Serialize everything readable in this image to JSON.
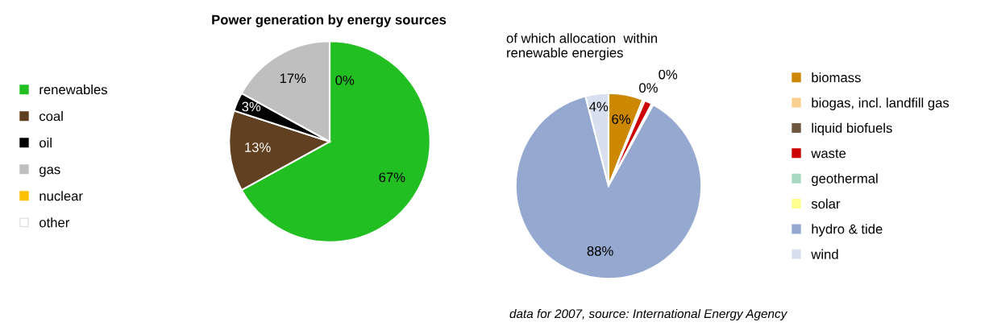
{
  "chart_data": [
    {
      "type": "pie",
      "title": "Power generation by energy sources",
      "categories": [
        "renewables",
        "coal",
        "oil",
        "gas",
        "nuclear",
        "other"
      ],
      "values": [
        67,
        13,
        3,
        17,
        0,
        0
      ],
      "colors": [
        "#22bf22",
        "#604020",
        "#000000",
        "#bfbfbf",
        "#ffc000",
        "#ffffff"
      ],
      "value_labels": [
        "67%",
        "13%",
        "3%",
        "17%",
        "0%",
        null
      ],
      "legend": "left"
    },
    {
      "type": "pie",
      "title": "of which allocation  within\nrenewable energies",
      "categories": [
        "biomass",
        "biogas, incl. landfill gas",
        "liquid biofuels",
        "waste",
        "geothermal",
        "solar",
        "hydro & tide",
        "wind"
      ],
      "values": [
        6,
        0.4,
        0,
        1.3,
        0.3,
        0,
        88,
        4
      ],
      "colors": [
        "#cc8800",
        "#f8d090",
        "#705840",
        "#cc0000",
        "#a8d8c0",
        "#ffff90",
        "#94a8d0",
        "#d8e0f0"
      ],
      "value_labels": [
        "6%",
        "0%",
        null,
        null,
        "0%",
        null,
        "88%",
        "4%"
      ],
      "legend": "right",
      "annotations": [
        "data for 2007, source: International Energy Agency"
      ]
    }
  ]
}
